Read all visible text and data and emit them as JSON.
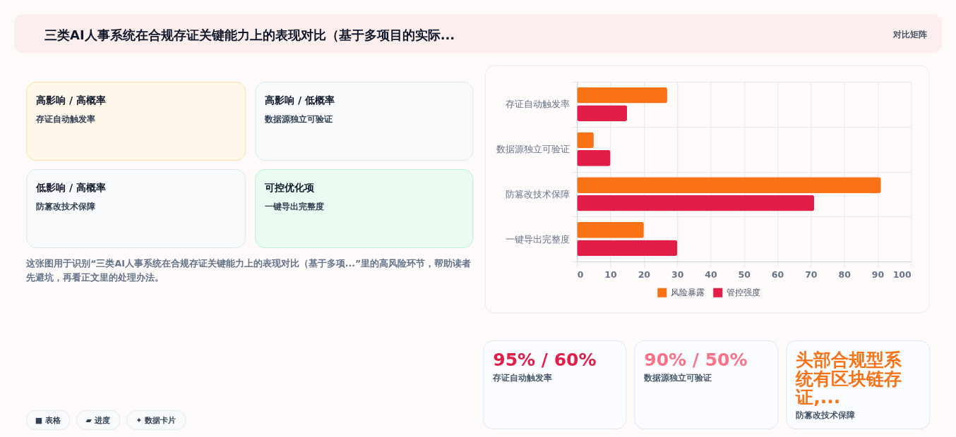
{
  "chart_data": [
    {
      "type": "other",
      "title": "三类AI人事系统在合规存证关键能力上的表现对比（基于多项目的实际...",
      "annotations": [
        "对比矩阵"
      ]
    },
    {
      "type": "other",
      "title": "高影响 / 高概率",
      "annotations": [
        "存证自动触发率"
      ],
      "color": "#fff7ea"
    },
    {
      "type": "other",
      "title": "高影响 / 低概率",
      "annotations": [
        "数据源独立可验证"
      ],
      "color": "#f8fafc"
    },
    {
      "type": "other",
      "title": "低影响 / 高概率",
      "annotations": [
        "防篡改技术保障"
      ],
      "color": "#f8fafc"
    },
    {
      "type": "other",
      "title": "可控优化项",
      "annotations": [
        "一键导出完整度"
      ],
      "color": "#ebfbf1"
    },
    {
      "type": "other",
      "annotations": [
        "这张图用于识别“三类AI人事系统在合规存证关键能力上的表现对比（基于多项...”里的高风险环节，帮助读者先避坑，再看正文里的处理办法。"
      ]
    },
    {
      "type": "other",
      "annotations": [
        "■ 表格",
        "▰ 进度",
        "✦ 数据卡片"
      ]
    },
    {
      "type": "bar",
      "orientation": "horizontal",
      "categories": [
        "存证自动触发率",
        "数据源独立可验证",
        "防篡改技术保障",
        "一键导出完整度"
      ],
      "series": [
        {
          "name": "风险暴露",
          "color": "#f97316",
          "values": [
            27,
            5,
            91,
            20
          ]
        },
        {
          "name": "管控强度",
          "color": "#e11d48",
          "values": [
            15,
            10,
            71,
            30
          ]
        }
      ],
      "xlim": [
        0,
        100
      ],
      "xticks": [
        0,
        10,
        20,
        30,
        40,
        50,
        60,
        70,
        80,
        90,
        100
      ],
      "grid": true,
      "legend": "bottom"
    },
    {
      "type": "other",
      "title": "95% / 60%",
      "subtitle": "存证自动触发率",
      "color": "#e11d48"
    },
    {
      "type": "other",
      "title": "90% / 50%",
      "subtitle": "数据源独立可验证",
      "color": "#fb7185"
    },
    {
      "type": "other",
      "title": "头部合规型系统有区块链存证,...",
      "subtitle": "防篡改技术保障",
      "color": "#f97316"
    }
  ]
}
